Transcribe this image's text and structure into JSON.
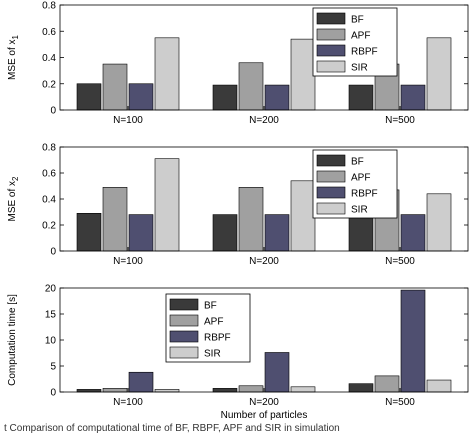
{
  "chart_data": [
    {
      "type": "bar",
      "ylabel": "MSE of x",
      "ylabel_sub": "1",
      "ylim": [
        0,
        0.8
      ],
      "yticks": [
        "0",
        "0.2",
        "0.4",
        "0.6",
        "0.8"
      ],
      "categories": [
        "N=100",
        "N=200",
        "N=500"
      ],
      "series": [
        {
          "name": "BF",
          "values": [
            0.2,
            0.19,
            0.19
          ],
          "color": "#3a3a3a"
        },
        {
          "name": "APF",
          "values": [
            0.35,
            0.36,
            0.35
          ],
          "color": "#a0a0a0"
        },
        {
          "name": "RBPF",
          "values": [
            0.2,
            0.19,
            0.19
          ],
          "color": "#4f4f70"
        },
        {
          "name": "SIR",
          "values": [
            0.55,
            0.54,
            0.55
          ],
          "color": "#cdcdcd"
        }
      ],
      "legend_position": "top-right",
      "grid": false
    },
    {
      "type": "bar",
      "ylabel": "MSE of x",
      "ylabel_sub": "2",
      "ylim": [
        0,
        0.8
      ],
      "yticks": [
        "0",
        "0.2",
        "0.4",
        "0.6",
        "0.8"
      ],
      "categories": [
        "N=100",
        "N=200",
        "N=500"
      ],
      "series": [
        {
          "name": "BF",
          "values": [
            0.29,
            0.28,
            0.28
          ],
          "color": "#3a3a3a"
        },
        {
          "name": "APF",
          "values": [
            0.49,
            0.49,
            0.47
          ],
          "color": "#a0a0a0"
        },
        {
          "name": "RBPF",
          "values": [
            0.28,
            0.28,
            0.28
          ],
          "color": "#4f4f70"
        },
        {
          "name": "SIR",
          "values": [
            0.71,
            0.54,
            0.44
          ],
          "color": "#cdcdcd"
        }
      ],
      "legend_position": "top-right",
      "grid": false
    },
    {
      "type": "bar",
      "ylabel": "Computation time [s]",
      "xlabel": "Number of particles",
      "ylim": [
        0,
        20
      ],
      "yticks": [
        "0",
        "5",
        "10",
        "15",
        "20"
      ],
      "categories": [
        "N=100",
        "N=200",
        "N=500"
      ],
      "series": [
        {
          "name": "BF",
          "values": [
            0.5,
            0.7,
            1.6
          ],
          "color": "#3a3a3a"
        },
        {
          "name": "APF",
          "values": [
            0.7,
            1.2,
            3.1
          ],
          "color": "#a0a0a0"
        },
        {
          "name": "RBPF",
          "values": [
            3.8,
            7.6,
            19.6
          ],
          "color": "#4f4f70"
        },
        {
          "name": "SIR",
          "values": [
            0.5,
            1.0,
            2.3
          ],
          "color": "#cdcdcd"
        }
      ],
      "legend_position": "top-left",
      "grid": false
    }
  ],
  "caption": "t Comparison of computational time of BF, RBPF, APF and SIR in simulation"
}
